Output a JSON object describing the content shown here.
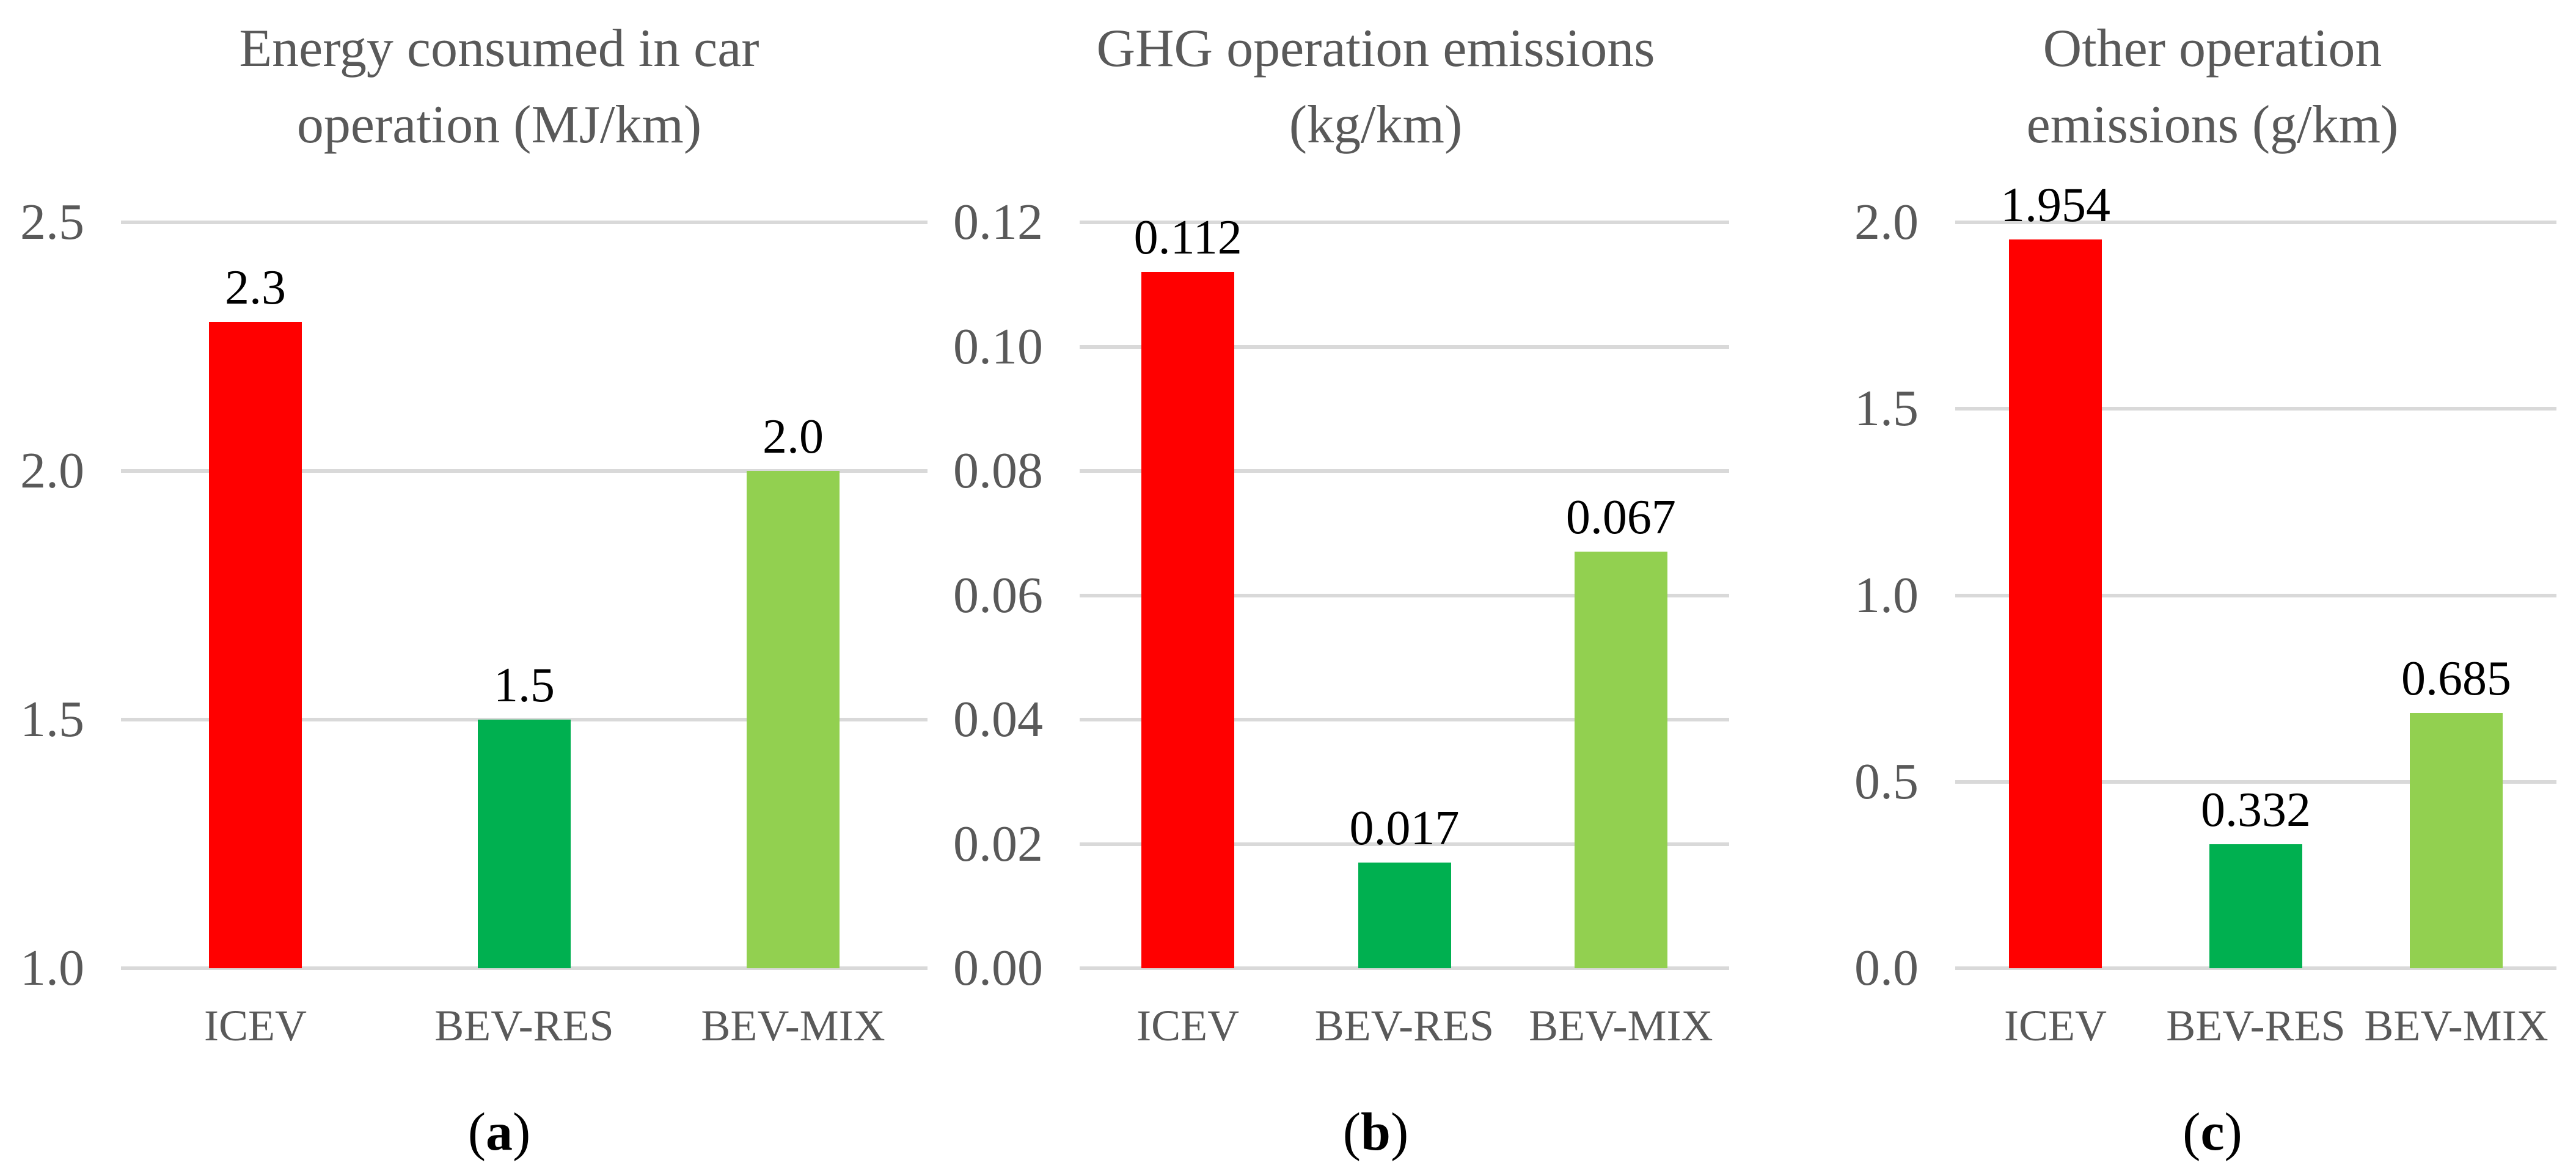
{
  "styles": {
    "background": "#FFFFFF",
    "gridline_color": "#D9D9D9",
    "axis_text_color": "#595959",
    "title_text_color": "#595959",
    "value_label_color": "#000000",
    "bar_red": "#FF0000",
    "bar_dark_green": "#00B050",
    "bar_light_green": "#92D050"
  },
  "chart_data": [
    {
      "type": "bar",
      "title": "Energy consumed in car operation (MJ/km)",
      "title_lines": [
        "Energy consumed in car",
        "operation (MJ/km)"
      ],
      "caption_open": "(",
      "caption_letter": "a",
      "caption_close": ")",
      "categories": [
        "ICEV",
        "BEV-RES",
        "BEV-MIX"
      ],
      "values": [
        2.3,
        1.5,
        2.0
      ],
      "value_labels": [
        "2.3",
        "1.5",
        "2.0"
      ],
      "series_colors": [
        "#FF0000",
        "#00B050",
        "#92D050"
      ],
      "xlabel": "",
      "ylabel": "",
      "ylim": [
        1.0,
        2.5
      ],
      "grid": true,
      "legend": "none",
      "yticks": [
        {
          "value": 2.5,
          "label": "2.5"
        },
        {
          "value": 2.0,
          "label": "2.0"
        },
        {
          "value": 1.5,
          "label": "1.5"
        },
        {
          "value": 1.0,
          "label": "1.0"
        }
      ]
    },
    {
      "type": "bar",
      "title": "GHG operation emissions (kg/km)",
      "title_lines": [
        "GHG operation emissions",
        "(kg/km)"
      ],
      "caption_open": "(",
      "caption_letter": "b",
      "caption_close": ")",
      "categories": [
        "ICEV",
        "BEV-RES",
        "BEV-MIX"
      ],
      "values": [
        0.112,
        0.017,
        0.067
      ],
      "value_labels": [
        "0.112",
        "0.017",
        "0.067"
      ],
      "series_colors": [
        "#FF0000",
        "#00B050",
        "#92D050"
      ],
      "xlabel": "",
      "ylabel": "",
      "ylim": [
        0.0,
        0.12
      ],
      "grid": true,
      "legend": "none",
      "yticks": [
        {
          "value": 0.12,
          "label": "0.12"
        },
        {
          "value": 0.1,
          "label": "0.10"
        },
        {
          "value": 0.08,
          "label": "0.08"
        },
        {
          "value": 0.06,
          "label": "0.06"
        },
        {
          "value": 0.04,
          "label": "0.04"
        },
        {
          "value": 0.02,
          "label": "0.02"
        },
        {
          "value": 0.0,
          "label": "0.00"
        }
      ]
    },
    {
      "type": "bar",
      "title": "Other operation emissions (g/km)",
      "title_lines": [
        "Other operation",
        "emissions (g/km)"
      ],
      "caption_open": "(",
      "caption_letter": "c",
      "caption_close": ")",
      "categories": [
        "ICEV",
        "BEV-RES",
        "BEV-MIX"
      ],
      "values": [
        1.954,
        0.332,
        0.685
      ],
      "value_labels": [
        "1.954",
        "0.332",
        "0.685"
      ],
      "series_colors": [
        "#FF0000",
        "#00B050",
        "#92D050"
      ],
      "xlabel": "",
      "ylabel": "",
      "ylim": [
        0.0,
        2.0
      ],
      "grid": true,
      "legend": "none",
      "yticks": [
        {
          "value": 2.0,
          "label": "2.0"
        },
        {
          "value": 1.5,
          "label": "1.5"
        },
        {
          "value": 1.0,
          "label": "1.0"
        },
        {
          "value": 0.5,
          "label": "0.5"
        },
        {
          "value": 0.0,
          "label": "0.0"
        }
      ]
    }
  ]
}
